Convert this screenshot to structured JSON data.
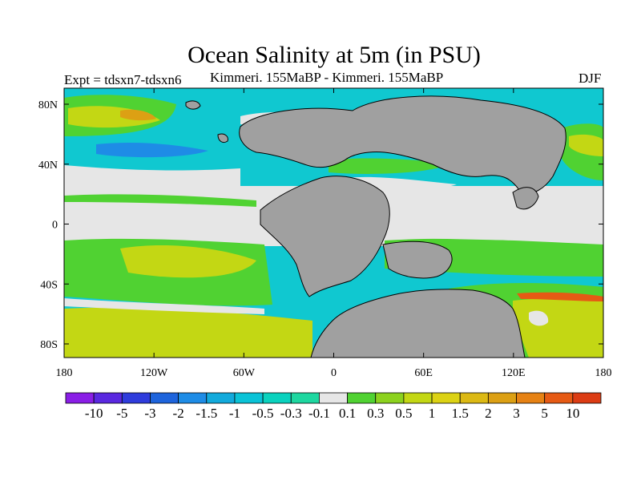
{
  "title": "Ocean Salinity at 5m (in PSU)",
  "left_label": "Expt = tdsxn7-tdsxn6",
  "center_label": "Kimmeri. 155MaBP - Kimmeri. 155MaBP",
  "right_label": "DJF",
  "axes": {
    "x_ticks": [
      "180",
      "120W",
      "60W",
      "0",
      "60E",
      "120E",
      "180"
    ],
    "y_ticks": [
      "80N",
      "40N",
      "0",
      "40S",
      "80S"
    ]
  },
  "colorbar": {
    "labels": [
      "-10",
      "-5",
      "-3",
      "-2",
      "-1.5",
      "-1",
      "-0.5",
      "-0.3",
      "-0.1",
      "0.1",
      "0.3",
      "0.5",
      "1",
      "1.5",
      "2",
      "3",
      "5",
      "10"
    ],
    "colors": [
      "#8a1ee6",
      "#5a28e0",
      "#2f3cdc",
      "#1e64dc",
      "#1e8ce6",
      "#12aadc",
      "#0ac3d7",
      "#0ad2be",
      "#1ed7a0",
      "#e6e6e6",
      "#50d232",
      "#8cd21e",
      "#c3d714",
      "#dcd214",
      "#dcb914",
      "#dca014",
      "#e68214",
      "#e65a14",
      "#dc3c14"
    ]
  },
  "colors": {
    "land": "#a0a0a0",
    "ocean_base": "#10c8d0",
    "ocean_neutral": "#e6e6e6",
    "ocean_light_green": "#50d232",
    "ocean_yellow": "#c3d714",
    "ocean_orange": "#dca014",
    "ocean_red": "#e65a14",
    "ocean_blue": "#1e8ce6"
  }
}
